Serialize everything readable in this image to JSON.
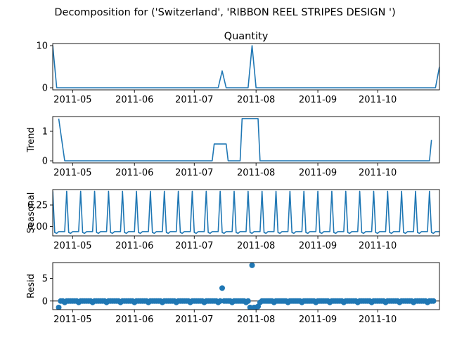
{
  "figure": {
    "suptitle": "Decomposition for ('Switzerland', 'RIBBON REEL STRIPES DESIGN ')"
  },
  "colors": {
    "line": "#1f77b4",
    "axis": "#000000",
    "zero_line": "#000000"
  },
  "chart_data": [
    {
      "type": "line",
      "title": "Quantity",
      "ylabel": "",
      "ylim": [
        -0.5,
        10.5
      ],
      "yticks": [
        0,
        10
      ],
      "x_dates": [
        "2011-04-21",
        "2011-04-23",
        "2011-07-13",
        "2011-07-15",
        "2011-07-17",
        "2011-07-28",
        "2011-07-30",
        "2011-08-01",
        "2011-10-30",
        "2011-11-01"
      ],
      "values": [
        10,
        0,
        0,
        4,
        0,
        0,
        10,
        0,
        0,
        5
      ]
    },
    {
      "type": "line",
      "title": "",
      "ylabel": "Trend",
      "ylim": [
        -0.07,
        1.5
      ],
      "yticks": [
        0,
        1
      ],
      "x_dates": [
        "2011-04-24",
        "2011-04-27",
        "2011-07-10",
        "2011-07-11",
        "2011-07-17",
        "2011-07-18",
        "2011-07-24",
        "2011-07-25",
        "2011-08-02",
        "2011-08-03",
        "2011-10-27",
        "2011-10-28"
      ],
      "values": [
        1.43,
        0,
        0,
        0.57,
        0.57,
        0,
        0,
        1.43,
        1.43,
        0,
        0,
        0.71
      ]
    },
    {
      "type": "line",
      "title": "",
      "ylabel": "Seasonal",
      "ylim": [
        -0.11,
        0.43
      ],
      "yticks": [
        0.0,
        0.25
      ],
      "tick_labels": [
        "0.00",
        "0.25"
      ],
      "periodic": {
        "start": "2011-04-21",
        "end": "2011-11-01",
        "period_days": 7,
        "pattern": [
          0.41,
          -0.07,
          -0.08,
          -0.06,
          -0.06,
          -0.06,
          -0.06
        ]
      }
    },
    {
      "type": "scatter",
      "title": "",
      "ylabel": "Resid",
      "ylim": [
        -1.9,
        8.5
      ],
      "yticks": [
        0,
        5
      ],
      "zero_line": true,
      "baseline": {
        "start": "2011-04-24",
        "end": "2011-10-29",
        "values": [
          0,
          0,
          0,
          -0.3,
          0,
          0,
          0
        ]
      },
      "outliers": [
        {
          "x": "2011-04-24",
          "y": -1.43
        },
        {
          "x": "2011-07-15",
          "y": 2.86
        },
        {
          "x": "2011-07-29",
          "y": -1.43
        },
        {
          "x": "2011-07-30",
          "y": 7.9
        },
        {
          "x": "2011-07-31",
          "y": -1.43
        },
        {
          "x": "2011-08-01",
          "y": -1.43
        },
        {
          "x": "2011-08-02",
          "y": -1.2
        }
      ]
    }
  ],
  "x_axis": {
    "range": [
      "2011-04-21",
      "2011-11-01"
    ],
    "ticks": [
      "2011-05-01",
      "2011-06-01",
      "2011-07-01",
      "2011-08-01",
      "2011-09-01",
      "2011-10-01"
    ],
    "tick_labels": [
      "2011-05",
      "2011-06",
      "2011-07",
      "2011-08",
      "2011-09",
      "2011-10"
    ]
  }
}
